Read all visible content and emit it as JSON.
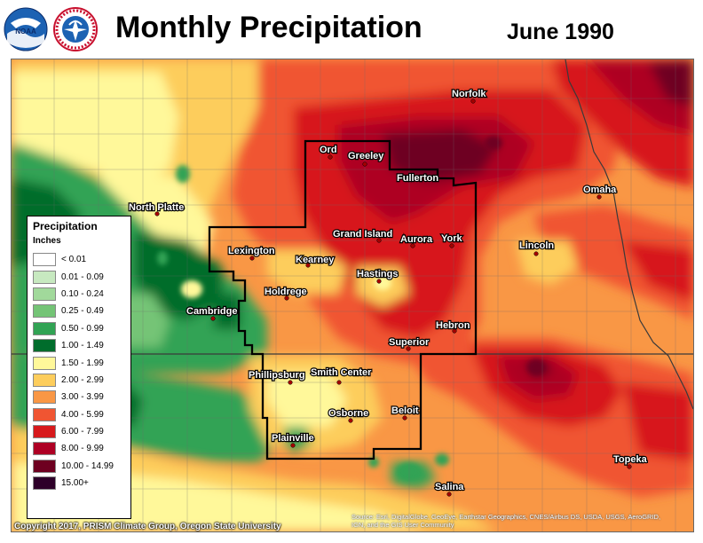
{
  "header": {
    "title": "Monthly Precipitation",
    "date": "June 1990"
  },
  "logos": {
    "noaa_text": "NOAA",
    "nws_text": "NATIONAL WEATHER SERVICE"
  },
  "legend": {
    "title": "Precipitation",
    "unit": "Inches",
    "items": [
      {
        "label": "< 0.01",
        "color": "#ffffff"
      },
      {
        "label": "0.01 - 0.09",
        "color": "#c7e9c0"
      },
      {
        "label": "0.10 - 0.24",
        "color": "#a1d99b"
      },
      {
        "label": "0.25 - 0.49",
        "color": "#74c476"
      },
      {
        "label": "0.50 - 0.99",
        "color": "#31a354"
      },
      {
        "label": "1.00 - 1.49",
        "color": "#006d2c"
      },
      {
        "label": "1.50 - 1.99",
        "color": "#fff89a"
      },
      {
        "label": "2.00 - 2.99",
        "color": "#fdcd5c"
      },
      {
        "label": "3.00 - 3.99",
        "color": "#f99745"
      },
      {
        "label": "4.00 - 5.99",
        "color": "#f05532"
      },
      {
        "label": "6.00 - 7.99",
        "color": "#d7191c"
      },
      {
        "label": "8.00 - 9.99",
        "color": "#ae0024"
      },
      {
        "label": "10.00 - 14.99",
        "color": "#6e0020"
      },
      {
        "label": "15.00+",
        "color": "#2e0029"
      }
    ]
  },
  "cities": [
    {
      "name": "Norfolk"
    },
    {
      "name": "Ord"
    },
    {
      "name": "Greeley"
    },
    {
      "name": "Fullerton"
    },
    {
      "name": "North Platte"
    },
    {
      "name": "Omaha"
    },
    {
      "name": "Grand Island"
    },
    {
      "name": "Aurora"
    },
    {
      "name": "York"
    },
    {
      "name": "Lexington"
    },
    {
      "name": "Kearney"
    },
    {
      "name": "Lincoln"
    },
    {
      "name": "Hastings"
    },
    {
      "name": "Holdrege"
    },
    {
      "name": "Cambridge"
    },
    {
      "name": "Hebron"
    },
    {
      "name": "Superior"
    },
    {
      "name": "Phillipsburg"
    },
    {
      "name": "Smith Center"
    },
    {
      "name": "Beloit"
    },
    {
      "name": "Osborne"
    },
    {
      "name": "Plainville"
    },
    {
      "name": "Topeka"
    },
    {
      "name": "Salina"
    }
  ],
  "credits": {
    "copyright": "Copyright 2017, PRISM Climate Group, Oregon State University",
    "source_line1": "Source: Esri, DigitalGlobe, GeoEye, Earthstar Geographics, CNES/Airbus DS, USDA, USGS, AeroGRID,",
    "source_line2": "IGN, and the GIS User Community"
  }
}
